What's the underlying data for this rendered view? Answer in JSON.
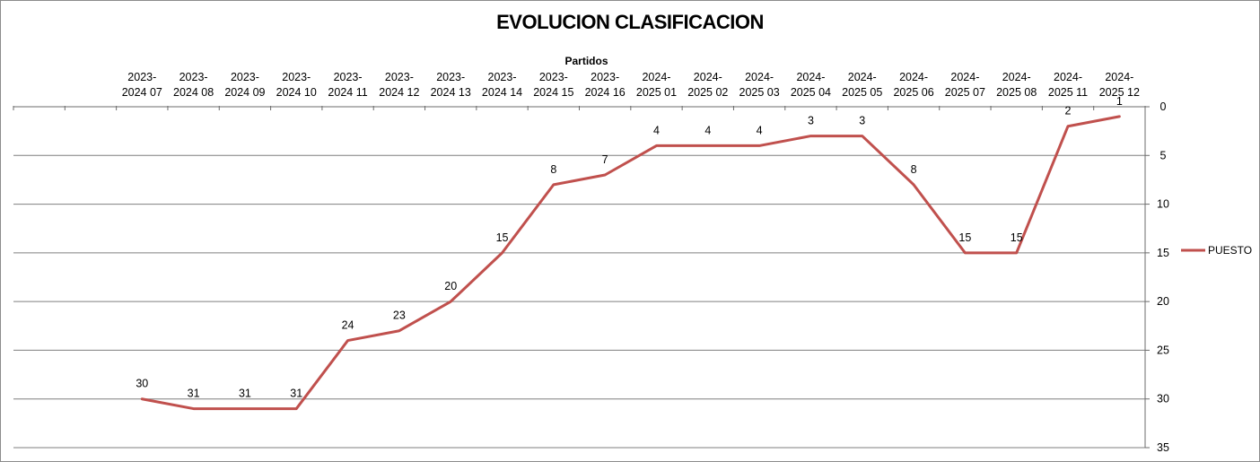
{
  "chart_data": {
    "type": "line",
    "title": "EVOLUCION CLASIFICACION",
    "xlabel": "Partidos",
    "ylabel": "",
    "x_axis_position": "top",
    "y_axis_position": "right",
    "y_inverted": true,
    "ylim": [
      0,
      35
    ],
    "y_ticks": [
      0,
      5,
      10,
      15,
      20,
      25,
      30,
      35
    ],
    "grid": true,
    "legend_position": "right",
    "categories": [
      [
        "",
        ""
      ],
      [
        "",
        ""
      ],
      [
        "2023-",
        "2024 07"
      ],
      [
        "2023-",
        "2024 08"
      ],
      [
        "2023-",
        "2024 09"
      ],
      [
        "2023-",
        "2024 10"
      ],
      [
        "2023-",
        "2024 11"
      ],
      [
        "2023-",
        "2024 12"
      ],
      [
        "2023-",
        "2024 13"
      ],
      [
        "2023-",
        "2024 14"
      ],
      [
        "2023-",
        "2024 15"
      ],
      [
        "2023-",
        "2024 16"
      ],
      [
        "2024-",
        "2025 01"
      ],
      [
        "2024-",
        "2025 02"
      ],
      [
        "2024-",
        "2025 03"
      ],
      [
        "2024-",
        "2025 04"
      ],
      [
        "2024-",
        "2025 05"
      ],
      [
        "2024-",
        "2025 06"
      ],
      [
        "2024-",
        "2025 07"
      ],
      [
        "2024-",
        "2025 08"
      ],
      [
        "2024-",
        "2025 11"
      ],
      [
        "2024-",
        "2025 12"
      ]
    ],
    "series": [
      {
        "name": "PUESTO",
        "color": "#c0504d",
        "values": [
          null,
          null,
          30,
          31,
          31,
          31,
          24,
          23,
          20,
          15,
          8,
          7,
          4,
          4,
          4,
          3,
          3,
          8,
          15,
          15,
          2,
          1
        ]
      }
    ]
  }
}
